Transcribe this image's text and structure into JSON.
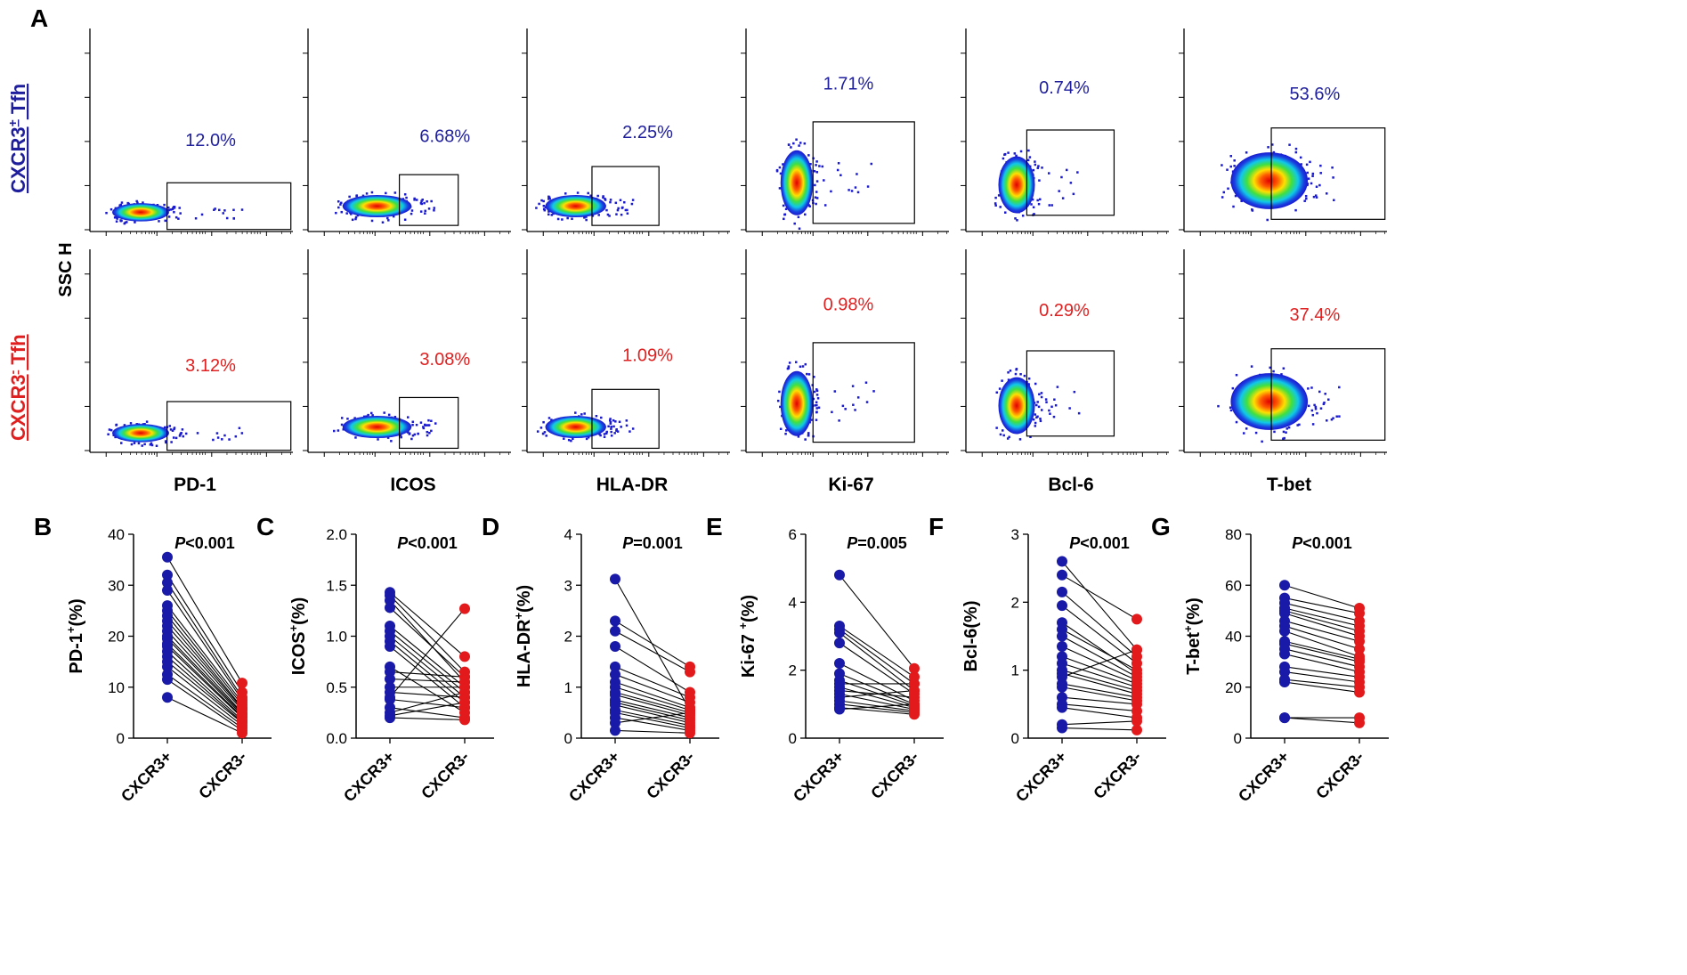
{
  "panel_letter_flow": "A",
  "row_labels": {
    "top": {
      "prefix": "CXCR3",
      "sup": "+",
      "suffix": " Tfh",
      "color": "#1f1f9e"
    },
    "bottom": {
      "prefix": "CXCR3",
      "sup": "-",
      "suffix": " Tfh",
      "color": "#e02020"
    }
  },
  "flow_ylabel": "SSC H",
  "flow_markers": [
    "PD-1",
    "ICOS",
    "HLA-DR",
    "Ki-67",
    "Bcl-6",
    "T-bet"
  ],
  "flow_percents_top": [
    "12.0%",
    "6.68%",
    "2.25%",
    "1.71%",
    "0.74%",
    "53.6%"
  ],
  "flow_percents_bottom": [
    "3.12%",
    "3.08%",
    "1.09%",
    "0.98%",
    "0.29%",
    "37.4%"
  ],
  "colors": {
    "cxcr3_pos": "#1a1aa8",
    "cxcr3_neg": "#e31a1c",
    "line": "#000000"
  },
  "chart_data": [
    {
      "type": "scatter",
      "panel": "B",
      "ylabel": {
        "text": "PD-1",
        "sup": "+",
        "post": "(%)"
      },
      "ylim": [
        0,
        40
      ],
      "yticks": [
        0,
        10,
        20,
        30,
        40
      ],
      "ytick_labels": [
        "0",
        "10",
        "20",
        "30",
        "40"
      ],
      "pval": {
        "letter": "P",
        "rest": "<0.001"
      },
      "categories": [
        "CXCR3+",
        "CXCR3-"
      ],
      "pairs": [
        [
          35.5,
          10.8
        ],
        [
          32.0,
          9.0
        ],
        [
          30.5,
          8.0
        ],
        [
          29.0,
          7.5
        ],
        [
          26.0,
          7.0
        ],
        [
          25.0,
          6.5
        ],
        [
          24.0,
          6.0
        ],
        [
          23.0,
          5.8
        ],
        [
          22.0,
          5.5
        ],
        [
          21.0,
          5.0
        ],
        [
          20.0,
          4.8
        ],
        [
          19.5,
          4.5
        ],
        [
          18.5,
          4.2
        ],
        [
          18.0,
          4.0
        ],
        [
          17.0,
          3.5
        ],
        [
          16.0,
          3.2
        ],
        [
          15.0,
          3.0
        ],
        [
          14.0,
          2.5
        ],
        [
          12.5,
          2.0
        ],
        [
          11.5,
          1.5
        ],
        [
          8.0,
          1.0
        ]
      ]
    },
    {
      "type": "scatter",
      "panel": "C",
      "ylabel": {
        "text": "ICOS",
        "sup": "+",
        "post": "(%)"
      },
      "ylim": [
        0,
        2
      ],
      "yticks": [
        0,
        0.5,
        1,
        1.5,
        2
      ],
      "ytick_labels": [
        "0.0",
        "0.5",
        "1.0",
        "1.5",
        "2.0"
      ],
      "pval": {
        "letter": "P",
        "rest": "<0.001"
      },
      "categories": [
        "CXCR3+",
        "CXCR3-"
      ],
      "pairs": [
        [
          1.43,
          0.8
        ],
        [
          1.4,
          0.65
        ],
        [
          1.35,
          0.55
        ],
        [
          1.28,
          0.6
        ],
        [
          1.1,
          0.5
        ],
        [
          1.05,
          0.45
        ],
        [
          1.0,
          0.4
        ],
        [
          0.95,
          0.35
        ],
        [
          0.9,
          0.3
        ],
        [
          0.7,
          0.25
        ],
        [
          0.65,
          0.6
        ],
        [
          0.58,
          0.55
        ],
        [
          0.5,
          0.5
        ],
        [
          0.45,
          0.4
        ],
        [
          0.4,
          1.27
        ],
        [
          0.38,
          0.3
        ],
        [
          0.3,
          0.2
        ],
        [
          0.25,
          0.45
        ],
        [
          0.22,
          0.35
        ],
        [
          0.2,
          0.18
        ]
      ]
    },
    {
      "type": "scatter",
      "panel": "D",
      "ylabel": {
        "text": "HLA-DR",
        "sup": "+",
        "post": "(%)"
      },
      "ylim": [
        0,
        4
      ],
      "yticks": [
        0,
        1,
        2,
        3,
        4
      ],
      "ytick_labels": [
        "0",
        "1",
        "2",
        "3",
        "4"
      ],
      "pval": {
        "letter": "P",
        "rest": "=0.001"
      },
      "categories": [
        "CXCR3+",
        "CXCR3-"
      ],
      "pairs": [
        [
          3.12,
          0.55
        ],
        [
          2.3,
          1.4
        ],
        [
          2.1,
          1.3
        ],
        [
          1.8,
          0.9
        ],
        [
          1.4,
          0.8
        ],
        [
          1.25,
          0.7
        ],
        [
          1.1,
          0.6
        ],
        [
          1.0,
          0.55
        ],
        [
          0.9,
          0.5
        ],
        [
          0.85,
          0.45
        ],
        [
          0.75,
          0.4
        ],
        [
          0.7,
          0.35
        ],
        [
          0.65,
          0.3
        ],
        [
          0.55,
          0.25
        ],
        [
          0.5,
          0.2
        ],
        [
          0.4,
          0.15
        ],
        [
          0.3,
          0.5
        ],
        [
          0.15,
          0.1
        ]
      ]
    },
    {
      "type": "scatter",
      "panel": "E",
      "ylabel": {
        "text": "Ki-67 ",
        "sup": "+",
        "post": "(%)"
      },
      "ylim": [
        0,
        6
      ],
      "yticks": [
        0,
        2,
        4,
        6
      ],
      "ytick_labels": [
        "0",
        "2",
        "4",
        "6"
      ],
      "pval": {
        "letter": "P",
        "rest": "=0.005"
      },
      "categories": [
        "CXCR3+",
        "CXCR3-"
      ],
      "pairs": [
        [
          4.8,
          2.05
        ],
        [
          3.3,
          1.8
        ],
        [
          3.2,
          1.6
        ],
        [
          3.1,
          1.4
        ],
        [
          2.8,
          1.3
        ],
        [
          2.2,
          1.1
        ],
        [
          1.9,
          1.0
        ],
        [
          1.7,
          0.95
        ],
        [
          1.6,
          1.6
        ],
        [
          1.5,
          0.9
        ],
        [
          1.4,
          1.2
        ],
        [
          1.3,
          0.85
        ],
        [
          1.2,
          1.4
        ],
        [
          1.1,
          0.8
        ],
        [
          1.0,
          0.75
        ],
        [
          0.9,
          0.7
        ],
        [
          0.85,
          1.0
        ]
      ]
    },
    {
      "type": "scatter",
      "panel": "F",
      "ylabel": {
        "text": "Bcl-6",
        "sup": "",
        "post": "(%)"
      },
      "ylim": [
        0,
        3
      ],
      "yticks": [
        0,
        1,
        2,
        3
      ],
      "ytick_labels": [
        "0",
        "1",
        "2",
        "3"
      ],
      "pval": {
        "letter": "P",
        "rest": "<0.001"
      },
      "categories": [
        "CXCR3+",
        "CXCR3-"
      ],
      "pairs": [
        [
          2.6,
          1.3
        ],
        [
          2.4,
          1.75
        ],
        [
          2.15,
          1.2
        ],
        [
          1.95,
          1.1
        ],
        [
          1.7,
          0.95
        ],
        [
          1.6,
          1.0
        ],
        [
          1.5,
          0.9
        ],
        [
          1.35,
          0.85
        ],
        [
          1.2,
          0.8
        ],
        [
          1.1,
          0.75
        ],
        [
          1.0,
          0.7
        ],
        [
          0.95,
          0.65
        ],
        [
          0.9,
          1.3
        ],
        [
          0.8,
          0.6
        ],
        [
          0.75,
          0.55
        ],
        [
          0.6,
          0.5
        ],
        [
          0.5,
          0.4
        ],
        [
          0.45,
          0.3
        ],
        [
          0.2,
          0.25
        ],
        [
          0.15,
          0.12
        ]
      ]
    },
    {
      "type": "scatter",
      "panel": "G",
      "ylabel": {
        "text": "T-bet",
        "sup": "+",
        "post": "(%)"
      },
      "ylim": [
        0,
        80
      ],
      "yticks": [
        0,
        20,
        40,
        60,
        80
      ],
      "ytick_labels": [
        "0",
        "20",
        "40",
        "60",
        "80"
      ],
      "pval": {
        "letter": "P",
        "rest": "<0.001"
      },
      "categories": [
        "CXCR3+",
        "CXCR3-"
      ],
      "pairs": [
        [
          60.0,
          51.0
        ],
        [
          55.0,
          49.0
        ],
        [
          53.0,
          46.0
        ],
        [
          51.0,
          44.0
        ],
        [
          50.0,
          42.0
        ],
        [
          49.0,
          40.0
        ],
        [
          46.0,
          38.0
        ],
        [
          44.0,
          35.0
        ],
        [
          42.0,
          32.0
        ],
        [
          38.0,
          31.0
        ],
        [
          37.0,
          30.0
        ],
        [
          35.0,
          28.0
        ],
        [
          33.0,
          26.0
        ],
        [
          28.0,
          24.0
        ],
        [
          26.0,
          22.0
        ],
        [
          23.0,
          20.0
        ],
        [
          22.0,
          18.0
        ],
        [
          8.0,
          8.0
        ],
        [
          8.0,
          6.0
        ]
      ]
    }
  ]
}
